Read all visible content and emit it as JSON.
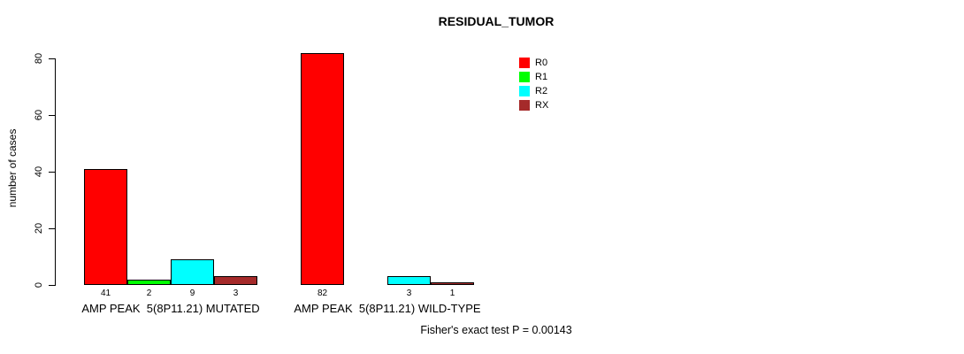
{
  "title": "RESIDUAL_TUMOR",
  "footer": "Fisher's exact test P = 0.00143",
  "chart_data": {
    "type": "bar",
    "title": "RESIDUAL_TUMOR",
    "xlabel": "",
    "ylabel": "number of cases",
    "categories": [
      "AMP PEAK  5(8P11.21) MUTATED",
      "AMP PEAK  5(8P11.21) WILD-TYPE"
    ],
    "series": [
      {
        "name": "R0",
        "color": "#FF0000",
        "values": [
          41,
          82
        ]
      },
      {
        "name": "R1",
        "color": "#00FF00",
        "values": [
          2,
          0
        ]
      },
      {
        "name": "R2",
        "color": "#00FFFF",
        "values": [
          9,
          3
        ]
      },
      {
        "name": "RX",
        "color": "#A52A2A",
        "values": [
          3,
          1
        ]
      }
    ],
    "bar_value_labels": [
      [
        "41",
        "2",
        "9",
        "3"
      ],
      [
        "82",
        "",
        "3",
        "1"
      ]
    ],
    "yticks": [
      0,
      20,
      40,
      60,
      80
    ],
    "ylim": [
      0,
      80
    ],
    "grid": false,
    "legend_position": "top-right-inside",
    "annotation": "Fisher's exact test P = 0.00143"
  }
}
